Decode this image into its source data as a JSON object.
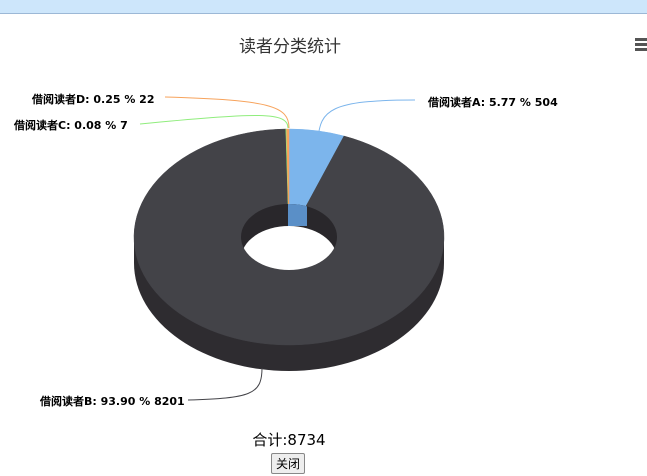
{
  "chart_data": {
    "type": "pie",
    "title": "读者分类统计",
    "style": "3d-donut",
    "slices": [
      {
        "name": "借阅读者A",
        "percent": 5.77,
        "value": 504,
        "color": "#7cb5ec"
      },
      {
        "name": "借阅读者B",
        "percent": 93.9,
        "value": 8201,
        "color": "#434348"
      },
      {
        "name": "借阅读者C",
        "percent": 0.08,
        "value": 7,
        "color": "#90ed7d"
      },
      {
        "name": "借阅读者D",
        "percent": 0.25,
        "value": 22,
        "color": "#f7a35c"
      }
    ],
    "labels": [
      "借阅读者A: 5.77 % 504",
      "借阅读者B: 93.90 % 8201",
      "借阅读者C: 0.08 % 7",
      "借阅读者D: 0.25 % 22"
    ]
  },
  "footer": {
    "total": "合计:8734",
    "close_label": "关闭"
  },
  "icons": {
    "menu": "hamburger-menu-icon"
  }
}
